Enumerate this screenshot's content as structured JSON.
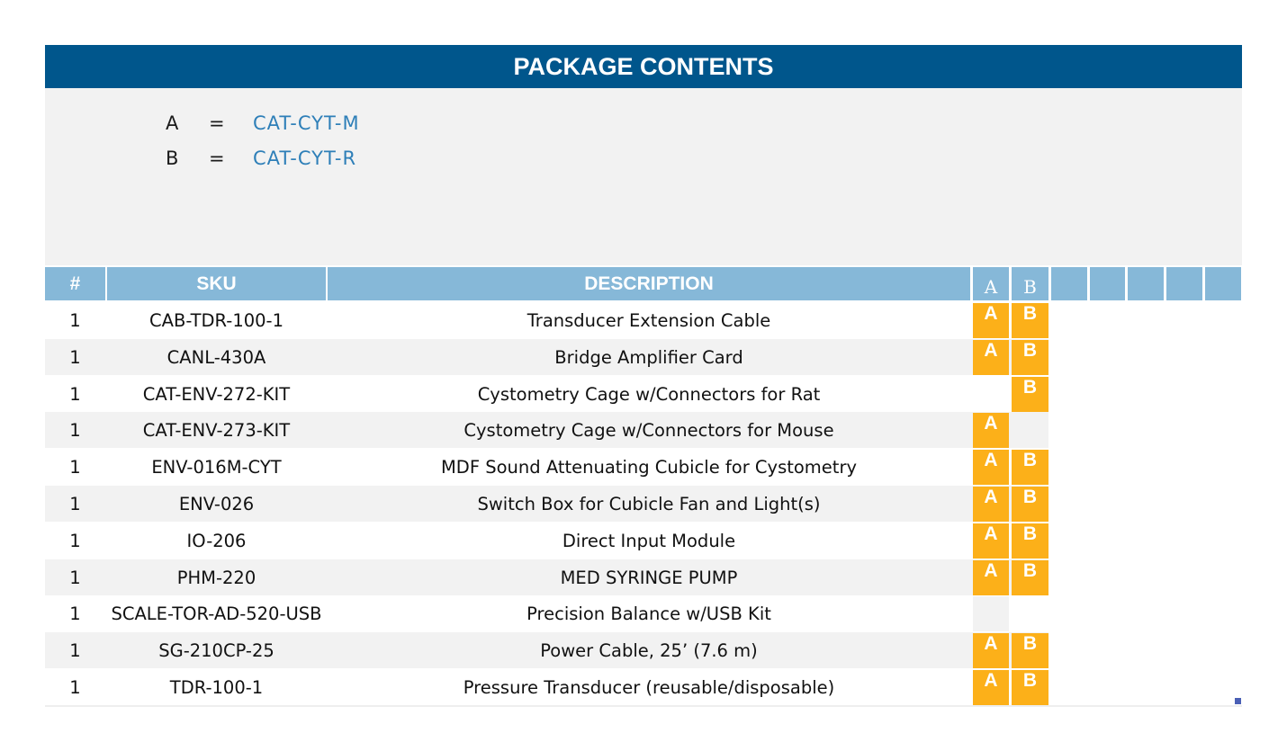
{
  "title": "PACKAGE CONTENTS",
  "legend": [
    {
      "key": "A",
      "eq": "=",
      "value": "CAT-CYT-M"
    },
    {
      "key": "B",
      "eq": "=",
      "value": "CAT-CYT-R"
    }
  ],
  "headers": {
    "num": "#",
    "sku": "SKU",
    "desc": "DESCRIPTION",
    "a": "A",
    "b": "B"
  },
  "colors": {
    "title_bg": "#00568c",
    "header_bg": "#86b8d8",
    "badge": "#fcb019"
  },
  "rows": [
    {
      "qty": "1",
      "sku": "CAB-TDR-100-1",
      "desc": "Transducer Extension Cable",
      "a": "A",
      "b": "B"
    },
    {
      "qty": "1",
      "sku": "CANL-430A",
      "desc": "Bridge Amplifier Card",
      "a": "A",
      "b": "B"
    },
    {
      "qty": "1",
      "sku": "CAT-ENV-272-KIT",
      "desc": "Cystometry Cage w/Connectors for Rat",
      "a": "",
      "b": "B"
    },
    {
      "qty": "1",
      "sku": "CAT-ENV-273-KIT",
      "desc": "Cystometry Cage w/Connectors for Mouse",
      "a": "A",
      "b": ""
    },
    {
      "qty": "1",
      "sku": "ENV-016M-CYT",
      "desc": "MDF Sound Attenuating Cubicle for Cystometry",
      "a": "A",
      "b": "B"
    },
    {
      "qty": "1",
      "sku": "ENV-026",
      "desc": "Switch Box for Cubicle Fan and Light(s)",
      "a": "A",
      "b": "B"
    },
    {
      "qty": "1",
      "sku": "IO-206",
      "desc": "Direct Input Module",
      "a": "A",
      "b": "B"
    },
    {
      "qty": "1",
      "sku": "PHM-220",
      "desc": "MED SYRINGE PUMP",
      "a": "A",
      "b": "B"
    },
    {
      "qty": "1",
      "sku": "SCALE-TOR-AD-520-USB",
      "desc": "Precision Balance w/USB Kit",
      "a": "",
      "b": ""
    },
    {
      "qty": "1",
      "sku": "SG-210CP-25",
      "desc": "Power Cable, 25’ (7.6 m)",
      "a": "A",
      "b": "B"
    },
    {
      "qty": "1",
      "sku": "TDR-100-1",
      "desc": "Pressure Transducer (reusable/disposable)",
      "a": "A",
      "b": "B"
    }
  ]
}
